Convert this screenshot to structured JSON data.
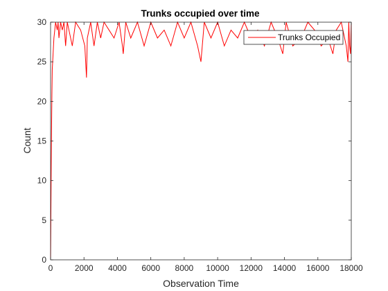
{
  "chart_data": {
    "type": "line",
    "title": "Trunks occupied over time",
    "xlabel": "Observation Time",
    "ylabel": "Count",
    "xlim": [
      0,
      18000
    ],
    "ylim": [
      0,
      30
    ],
    "xticks": [
      0,
      2000,
      4000,
      6000,
      8000,
      10000,
      12000,
      14000,
      16000,
      18000
    ],
    "yticks": [
      0,
      5,
      10,
      15,
      20,
      25,
      30
    ],
    "grid": false,
    "legend_position": "top-right",
    "series": [
      {
        "name": "Trunks Occupied",
        "color": "#ff0000",
        "x": [
          0,
          20,
          40,
          60,
          80,
          100,
          150,
          200,
          250,
          300,
          400,
          450,
          500,
          600,
          700,
          800,
          900,
          1000,
          1100,
          1300,
          1500,
          1800,
          2050,
          2100,
          2150,
          2200,
          2400,
          2600,
          2800,
          3000,
          3200,
          3500,
          3800,
          4100,
          4300,
          4350,
          4500,
          4800,
          5200,
          5600,
          6000,
          6400,
          6800,
          7200,
          7600,
          8000,
          8400,
          8800,
          9000,
          9200,
          9600,
          10000,
          10400,
          10800,
          11200,
          11600,
          12000,
          12400,
          12800,
          13200,
          13600,
          13900,
          14100,
          14500,
          15000,
          15400,
          15800,
          16200,
          16600,
          16900,
          17100,
          17400,
          17700,
          17800,
          17850,
          17900,
          17950,
          18000
        ],
        "y": [
          0,
          6,
          12,
          17,
          21,
          24,
          26,
          28,
          29,
          30,
          29,
          30,
          28,
          30,
          29,
          30,
          27,
          30,
          29,
          27,
          30,
          29,
          27,
          25,
          23,
          28,
          30,
          27,
          30,
          28,
          30,
          29,
          28,
          30,
          27,
          26,
          30,
          28,
          30,
          27,
          30,
          28,
          29,
          27,
          30,
          28,
          30,
          27,
          25,
          30,
          28,
          30,
          27,
          29,
          28,
          30,
          28,
          29,
          27,
          30,
          28,
          26,
          30,
          27,
          28,
          30,
          29,
          27,
          28,
          26,
          29,
          30,
          27,
          25,
          30,
          27,
          26,
          30
        ]
      }
    ]
  }
}
